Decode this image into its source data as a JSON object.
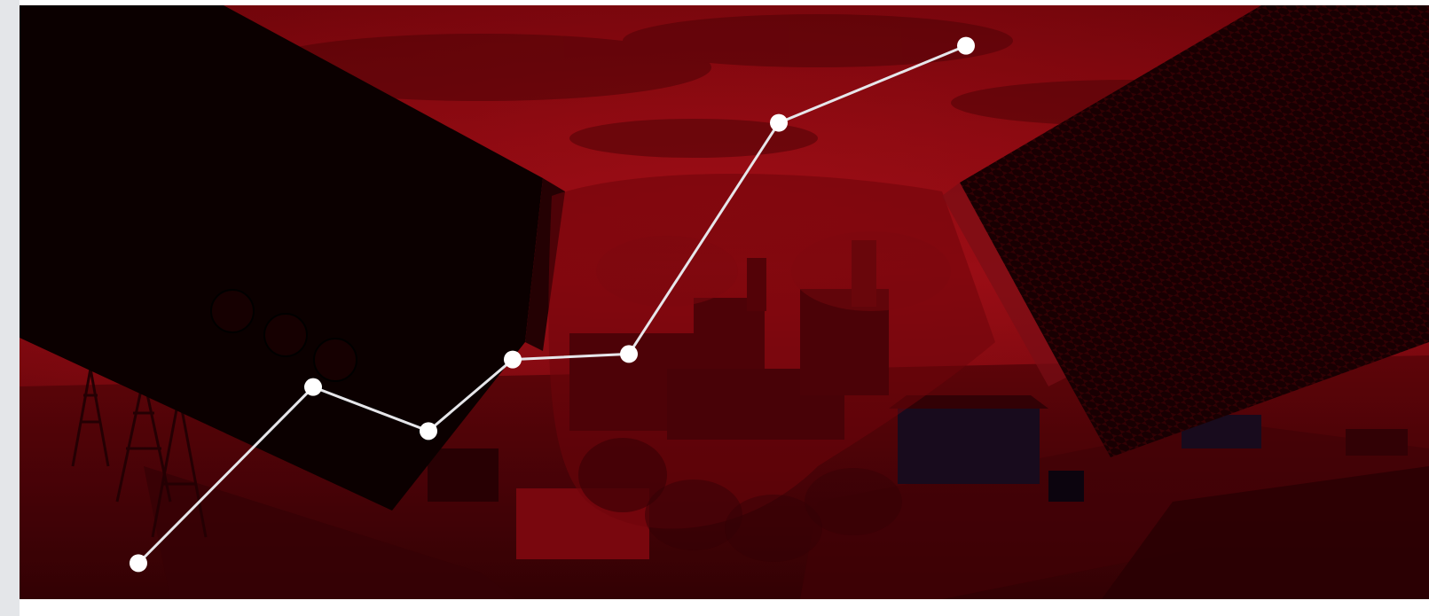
{
  "hero": {
    "subject": "handshake-over-power-plant",
    "tint_color": "#9b0a12",
    "shadow_color": "#120101",
    "line_color": "#e6e6ea"
  },
  "trend": {
    "levels": [
      0.03,
      0.35,
      0.27,
      0.4,
      0.41,
      0.83,
      0.97
    ]
  }
}
